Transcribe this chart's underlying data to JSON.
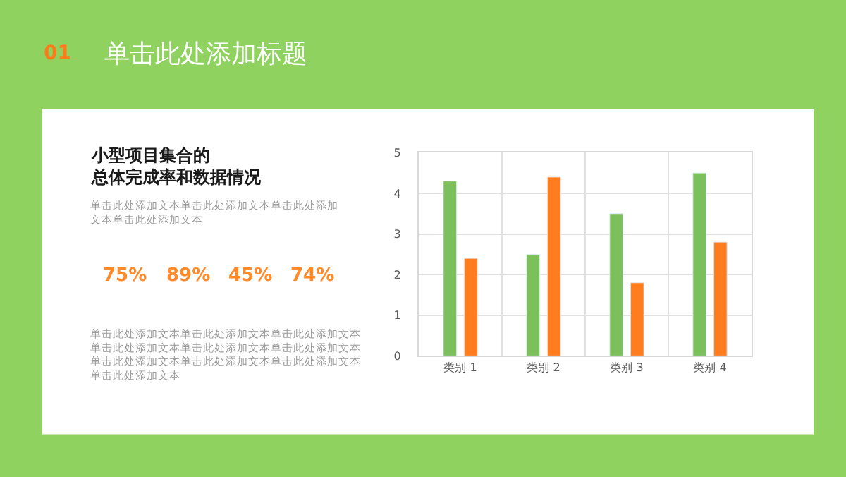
{
  "chart_data": {
    "type": "bar",
    "title": "单击此处添加标题",
    "categories": [
      "类别 1",
      "类别 2",
      "类别 3",
      "类别 4"
    ],
    "series": [
      {
        "color": "#7cc05c",
        "values": [
          4.3,
          2.5,
          3.5,
          4.5
        ]
      },
      {
        "color": "#ff7d1e",
        "values": [
          2.4,
          4.4,
          1.8,
          2.8
        ]
      }
    ],
    "ylim": [
      0,
      5
    ],
    "yticks": [
      0,
      1,
      2,
      3,
      4,
      5
    ],
    "grid": true,
    "annotations": [
      "01",
      "小型项目集合的总体完成率和数据情况",
      "单击此处添加文本单击此处添加文本单击此处添加文本单击此处添加文本",
      "75%",
      "89%",
      "45%",
      "74%",
      "单击此处添加文本单击此处添加文本单击此处添加文本单击此处添加文本单击此处添加文本单击此处添加文本单击此处添加文本单击此处添加文本单击此处添加文本单击此处添加文本"
    ]
  }
}
